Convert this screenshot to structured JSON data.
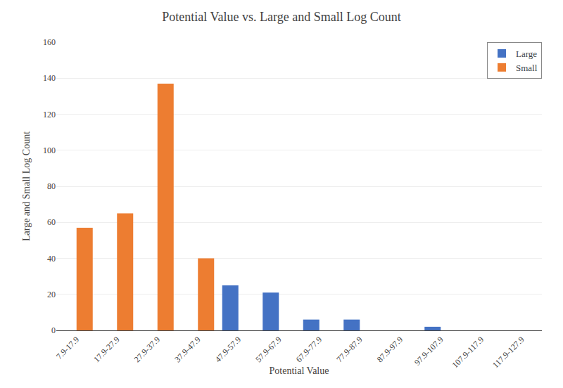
{
  "chart_data": {
    "type": "bar",
    "title": "Potential Value vs. Large and Small Log Count",
    "xlabel": "Potential Value",
    "ylabel": "Large and Small Log Count",
    "categories": [
      "7.9-17.9",
      "17.9-27.9",
      "27.9-37.9",
      "37.9-47.9",
      "47.9-57.9",
      "57.9-67.9",
      "67.9-77.9",
      "77.9-87.9",
      "87.9-97.9",
      "97.9-107.9",
      "107.9-117.9",
      "117.9-127.9"
    ],
    "series": [
      {
        "name": "Large",
        "color": "#4472C4",
        "values": [
          0,
          0,
          0,
          0,
          25,
          21,
          6,
          6,
          0,
          2,
          0,
          0
        ]
      },
      {
        "name": "Small",
        "color": "#ED7D31",
        "values": [
          57,
          65,
          137,
          40,
          0,
          0,
          0,
          0,
          0,
          0,
          0,
          0
        ]
      }
    ],
    "ylim": [
      0,
      160
    ],
    "yticks": [
      0,
      20,
      40,
      60,
      80,
      100,
      120,
      140,
      160
    ],
    "grid": true,
    "legend": "upper right"
  }
}
